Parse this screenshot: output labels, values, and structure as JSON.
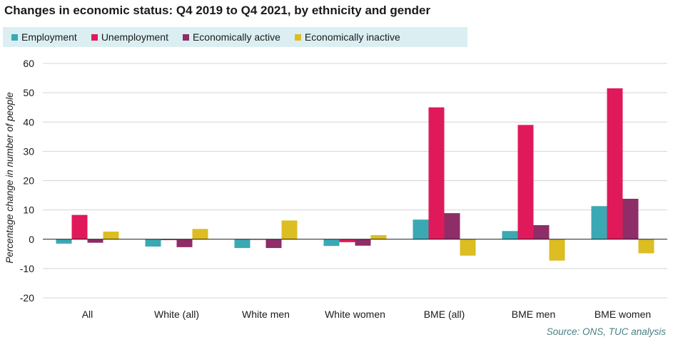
{
  "chart_data": {
    "type": "bar",
    "title": "Changes in economic status: Q4 2019 to Q4 2021, by ethnicity and gender",
    "ylabel": "Percentage change in number of people",
    "xlabel": "",
    "ylim": [
      -20,
      60
    ],
    "yticks": [
      -20,
      -10,
      0,
      10,
      20,
      30,
      40,
      50,
      60
    ],
    "grid": true,
    "legend_position": "top",
    "categories": [
      "All",
      "White (all)",
      "White men",
      "White women",
      "BME (all)",
      "BME men",
      "BME women"
    ],
    "series": [
      {
        "name": "Employment",
        "color": "#3aa9b4",
        "values": [
          -1.5,
          -2.5,
          -3.0,
          -2.3,
          6.7,
          2.8,
          11.3
        ]
      },
      {
        "name": "Unemployment",
        "color": "#e0195a",
        "values": [
          8.3,
          -0.3,
          -0.2,
          -1.0,
          45.0,
          39.0,
          51.5
        ]
      },
      {
        "name": "Economically active",
        "color": "#8e2d67",
        "values": [
          -1.2,
          -2.7,
          -3.0,
          -2.2,
          8.9,
          4.8,
          13.8
        ]
      },
      {
        "name": "Economically inactive",
        "color": "#dcbd22",
        "values": [
          2.6,
          3.5,
          6.4,
          1.4,
          -5.6,
          -7.3,
          -4.8
        ]
      }
    ],
    "source": "Source: ONS, TUC analysis"
  }
}
